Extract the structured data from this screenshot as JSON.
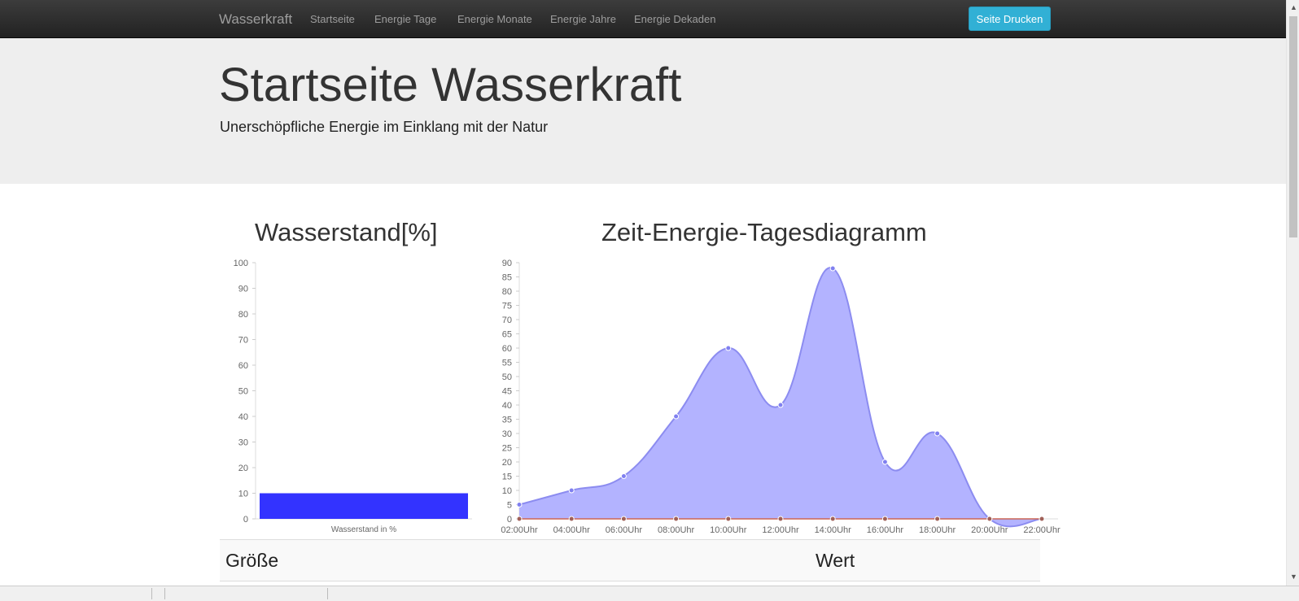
{
  "navbar": {
    "brand": "Wasserkraft",
    "items": [
      "Startseite",
      "Energie Tage",
      "Energie Monate",
      "Energie Jahre",
      "Energie Dekaden"
    ],
    "print_button": "Seite Drucken"
  },
  "jumbotron": {
    "title": "Startseite Wasserkraft",
    "subtitle": "Unerschöpfliche Energie im Einklang mit der Natur"
  },
  "charts": {
    "water_title": "Wasserstand[%]",
    "energy_title": "Zeit-Energie-Tagesdiagramm"
  },
  "chart_data": [
    {
      "type": "bar",
      "title": "Wasserstand[%]",
      "categories": [
        "Wasserstand in %"
      ],
      "values": [
        10
      ],
      "ylim": [
        0,
        100
      ],
      "yticks": [
        0,
        10,
        20,
        30,
        40,
        50,
        60,
        70,
        80,
        90,
        100
      ],
      "bar_color": "#3333ff"
    },
    {
      "type": "area",
      "title": "Zeit-Energie-Tagesdiagramm",
      "categories": [
        "02:00Uhr",
        "04:00Uhr",
        "06:00Uhr",
        "08:00Uhr",
        "10:00Uhr",
        "12:00Uhr",
        "14:00Uhr",
        "16:00Uhr",
        "18:00Uhr",
        "20:00Uhr",
        "22:00Uhr"
      ],
      "series": [
        {
          "values": [
            5,
            10,
            15,
            36,
            60,
            40,
            88,
            20,
            30,
            0,
            0
          ],
          "color": "#9999ff"
        },
        {
          "values": [
            0,
            0,
            0,
            0,
            0,
            0,
            0,
            0,
            0,
            0,
            0
          ],
          "color": "#cc6655"
        }
      ],
      "ylim": [
        0,
        90
      ],
      "yticks": [
        0,
        5,
        10,
        15,
        20,
        25,
        30,
        35,
        40,
        45,
        50,
        55,
        60,
        65,
        70,
        75,
        80,
        85,
        90
      ]
    }
  ],
  "table": {
    "headers": [
      "Größe",
      "Wert"
    ]
  }
}
